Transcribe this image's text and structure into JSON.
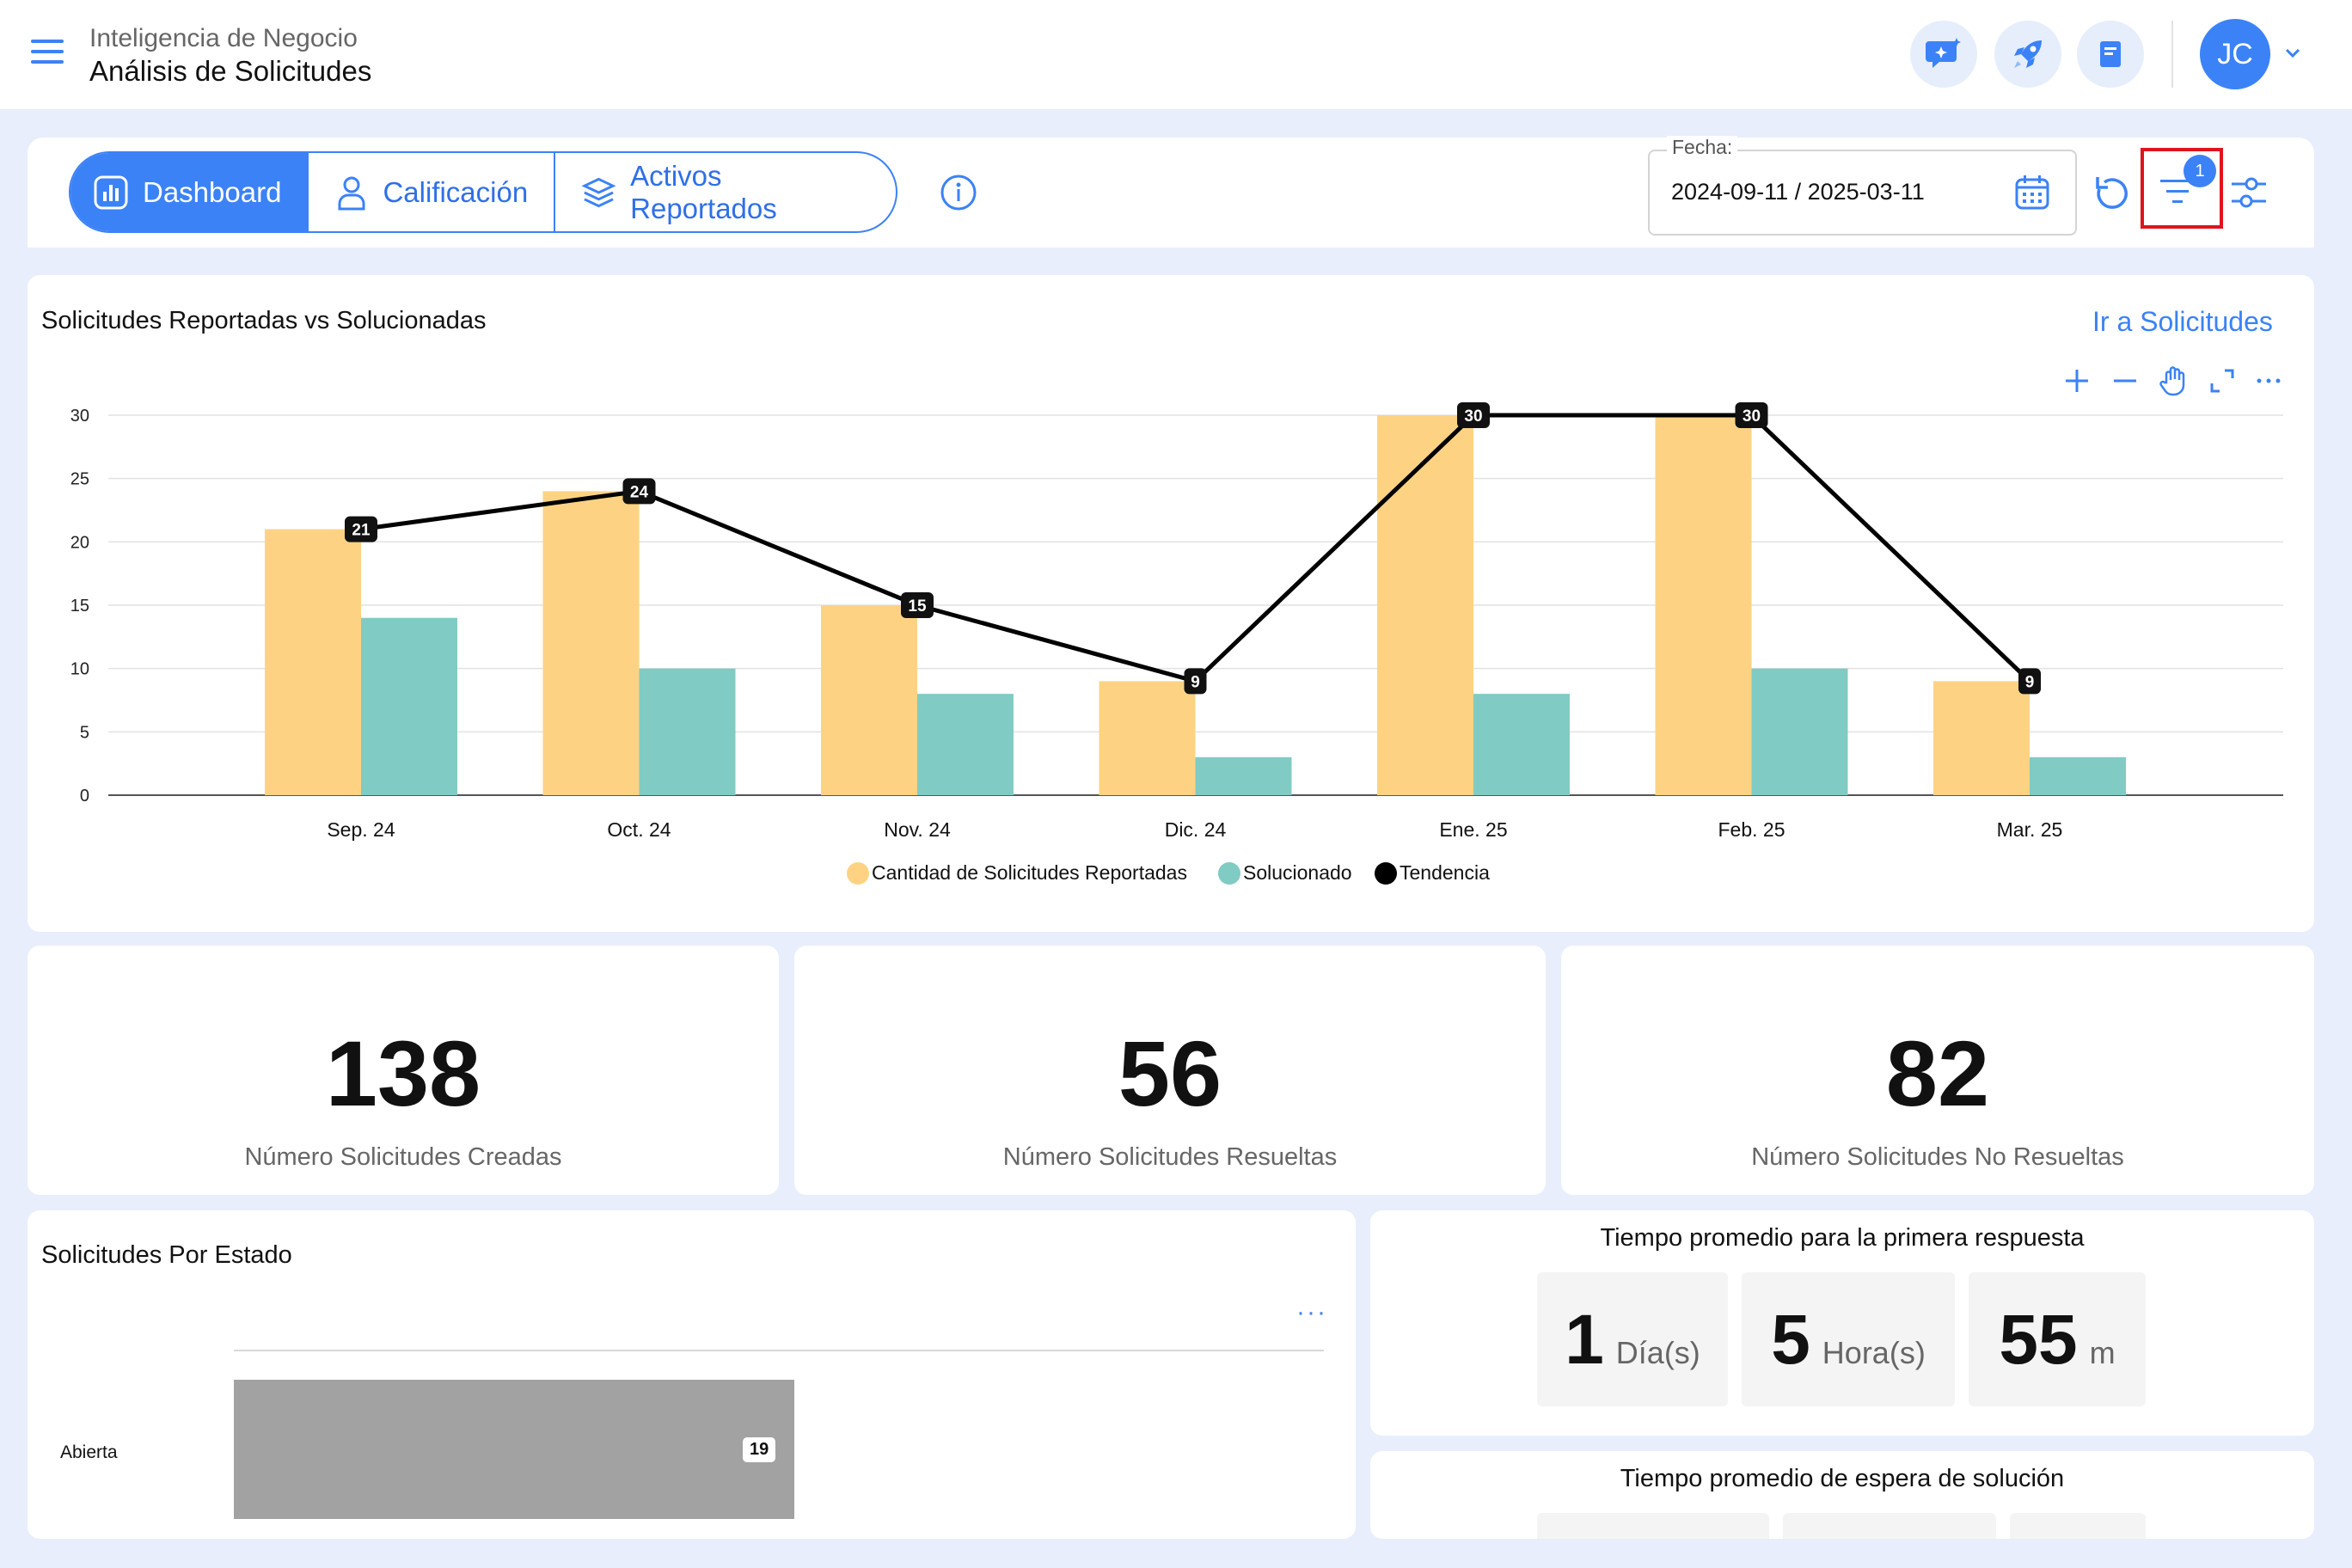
{
  "header": {
    "subtitle": "Inteligencia de Negocio",
    "title": "Análisis de Solicitudes",
    "avatar_initials": "JC"
  },
  "tabs": [
    {
      "label": "Dashboard",
      "active": true
    },
    {
      "label": "Calificación",
      "active": false
    },
    {
      "label": "Activos Reportados",
      "active": false
    }
  ],
  "date_filter": {
    "label": "Fecha:",
    "value": "2024-09-11 / 2025-03-11"
  },
  "filter_badge": "1",
  "colors": {
    "accent": "#3b82f6",
    "reported": "#fdd383",
    "solved": "#80cbc4",
    "trend": "#000000"
  },
  "chart": {
    "title": "Solicitudes Reportadas vs Solucionadas",
    "link": "Ir a Solicitudes"
  },
  "chart_data": {
    "type": "bar",
    "categories": [
      "Sep. 24",
      "Oct. 24",
      "Nov. 24",
      "Dic. 24",
      "Ene. 25",
      "Feb. 25",
      "Mar. 25"
    ],
    "series": [
      {
        "name": "Cantidad de Solicitudes Reportadas",
        "type": "bar",
        "values": [
          21,
          24,
          15,
          9,
          30,
          30,
          9
        ]
      },
      {
        "name": "Solucionado",
        "type": "bar",
        "values": [
          14,
          10,
          8,
          3,
          8,
          10,
          3
        ]
      },
      {
        "name": "Tendencia",
        "type": "line",
        "values": [
          21,
          24,
          15,
          9,
          30,
          30,
          9
        ]
      }
    ],
    "yticks": [
      0,
      5,
      10,
      15,
      20,
      25,
      30
    ],
    "ylim": [
      0,
      30
    ],
    "grid": true,
    "legend": "bottom-center"
  },
  "kpis": [
    {
      "value": "138",
      "label": "Número Solicitudes Creadas"
    },
    {
      "value": "56",
      "label": "Número Solicitudes Resueltas"
    },
    {
      "value": "82",
      "label": "Número Solicitudes No Resueltas"
    }
  ],
  "estado": {
    "title": "Solicitudes Por Estado",
    "menu": "···",
    "category": "Abierta",
    "value": "19"
  },
  "tiempo_respuesta": {
    "title": "Tiempo promedio para la primera respuesta",
    "days": "1",
    "days_unit": "Día(s)",
    "hours": "5",
    "hours_unit": "Hora(s)",
    "minutes": "55",
    "minutes_unit": "m"
  },
  "tiempo_espera": {
    "title": "Tiempo promedio de espera de solución"
  }
}
